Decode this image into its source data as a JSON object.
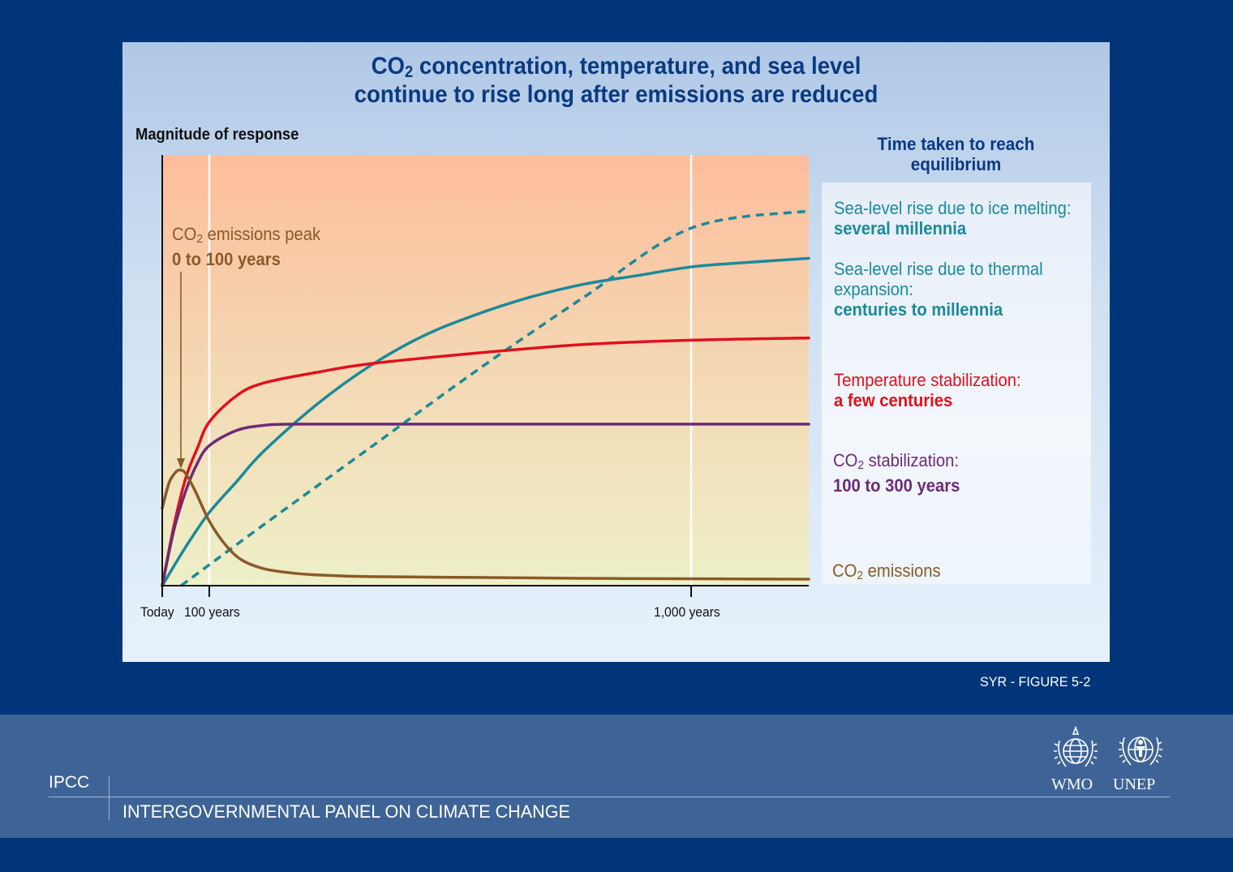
{
  "title": {
    "line1_pre": "CO",
    "line1_sub": "2",
    "line1_post": " concentration, temperature, and sea level",
    "line2": "continue to rise long after emissions are reduced"
  },
  "ylabel": "Magnitude of response",
  "equilibrium_title_1": "Time taken to reach",
  "equilibrium_title_2": "equilibrium",
  "peak_annotation": {
    "pre": "CO",
    "sub": "2",
    "post": " emissions peak",
    "value": "0 to 100 years"
  },
  "notes": {
    "ice": {
      "label": "Sea-level rise due to ice melting:",
      "value": "several millennia"
    },
    "thermal": {
      "label1": "Sea-level rise due to thermal",
      "label2": "expansion:",
      "value": "centuries to millennia"
    },
    "temp": {
      "label": "Temperature stabilization:",
      "value": "a few centuries"
    },
    "co2": {
      "pre": "CO",
      "sub": "2",
      "post": " stabilization:",
      "value": "100 to 300 years"
    },
    "emissions": {
      "pre": "CO",
      "sub": "2",
      "post": " emissions"
    }
  },
  "figure_ref": "SYR - FIGURE 5-2",
  "footer": {
    "ipcc": "IPCC",
    "org_name": "INTERGOVERNMENTAL PANEL ON CLIMATE CHANGE",
    "logo1": "WMO",
    "logo2": "UNEP"
  },
  "colors": {
    "ice": "#1a8a9a",
    "thermal": "#1a8a9a",
    "temp": "#e0101e",
    "co2": "#6e2a78",
    "emissions": "#8a5a28"
  },
  "chart_data": {
    "type": "line",
    "title": "CO2 concentration, temperature, and sea level continue to rise long after emissions are reduced",
    "ylabel": "Magnitude of response",
    "xlabel": "",
    "x_ticks": [
      {
        "value": 0,
        "label": "Today"
      },
      {
        "value": 100,
        "label": "100 years"
      },
      {
        "value": 1000,
        "label": "1,000  years"
      }
    ],
    "xlim": [
      0,
      1220
    ],
    "ylim": [
      0,
      100
    ],
    "grid_x_at": [
      100,
      1000
    ],
    "series": [
      {
        "name": "Sea-level rise due to ice melting",
        "style": "dashed",
        "color": "#1a8a9a",
        "x": [
          40,
          200,
          400,
          600,
          800,
          1000,
          1220
        ],
        "y": [
          0,
          14,
          32,
          50,
          67,
          83,
          87
        ]
      },
      {
        "name": "Sea-level rise due to thermal expansion",
        "style": "solid",
        "color": "#1a8a9a",
        "x": [
          0,
          50,
          100,
          150,
          200,
          300,
          400,
          500,
          600,
          700,
          800,
          900,
          1000,
          1100,
          1220
        ],
        "y": [
          0,
          9,
          17,
          24,
          31,
          42,
          51,
          58,
          63,
          67,
          70,
          72,
          74,
          75,
          76
        ]
      },
      {
        "name": "Temperature stabilization",
        "style": "solid",
        "color": "#e0101e",
        "x": [
          0,
          25,
          50,
          75,
          100,
          150,
          200,
          300,
          400,
          600,
          800,
          1000,
          1220
        ],
        "y": [
          0,
          14,
          25,
          32,
          38,
          44,
          47,
          49.5,
          51.5,
          54,
          56,
          57,
          57.5
        ]
      },
      {
        "name": "CO2 stabilization",
        "style": "solid",
        "color": "#6e2a78",
        "x": [
          0,
          25,
          50,
          75,
          100,
          150,
          200,
          260,
          400,
          600,
          800,
          1000,
          1220
        ],
        "y": [
          0,
          13,
          22,
          28.5,
          32.5,
          36,
          37.2,
          37.5,
          37.5,
          37.5,
          37.5,
          37.5,
          37.5
        ]
      },
      {
        "name": "CO2 emissions",
        "style": "solid",
        "color": "#8a5a28",
        "x": [
          0,
          15,
          30,
          40,
          50,
          70,
          100,
          130,
          160,
          200,
          250,
          300,
          400,
          600,
          800,
          1000,
          1220
        ],
        "y": [
          18,
          24,
          26.5,
          26.8,
          26,
          22,
          15,
          9.5,
          6,
          4,
          3,
          2.5,
          2.1,
          1.9,
          1.7,
          1.6,
          1.5
        ]
      }
    ]
  }
}
